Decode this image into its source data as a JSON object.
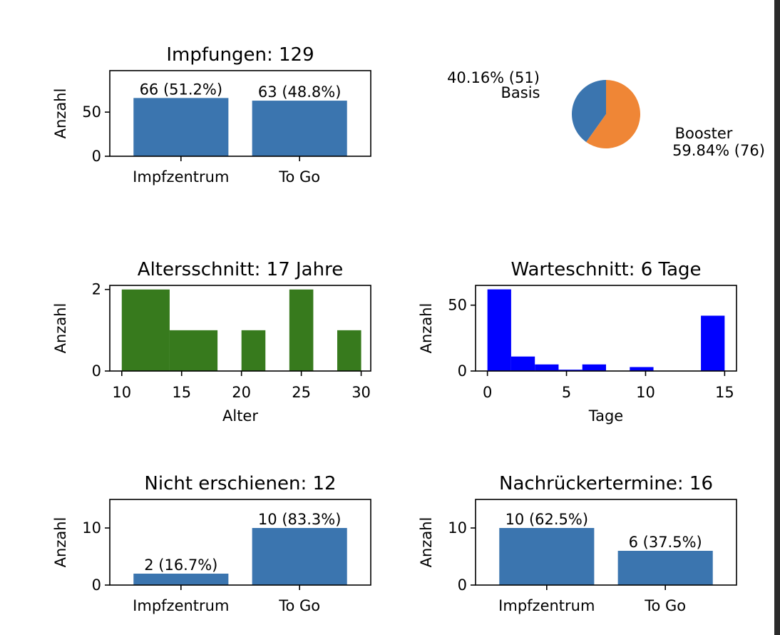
{
  "colors": {
    "bar": "#3b75af",
    "pie_basis": "#3b75af",
    "pie_booster": "#ef8636",
    "hist_age": "#377a1d",
    "hist_wait": "#0000ff"
  },
  "chart_data": [
    {
      "id": "vaccinations",
      "type": "bar",
      "title": "Impfungen: 129",
      "xlabel": "",
      "ylabel": "Anzahl",
      "categories": [
        "Impfzentrum",
        "To Go"
      ],
      "values": [
        66,
        63
      ],
      "data_labels": [
        "66 (51.2%)",
        "63 (48.8%)"
      ],
      "ylim": [
        0,
        97
      ],
      "yticks": [
        0,
        50
      ],
      "color": "bar"
    },
    {
      "id": "dose-type",
      "type": "pie",
      "title": "",
      "slices": [
        {
          "label": "Basis",
          "value": 51,
          "pct_label": "40.16%  (51)",
          "color": "pie_basis"
        },
        {
          "label": "Booster",
          "value": 76,
          "pct_label": "59.84%  (76)",
          "color": "pie_booster"
        }
      ]
    },
    {
      "id": "age",
      "type": "bar",
      "subtype": "histogram",
      "title": "Altersschnitt: 17 Jahre",
      "xlabel": "Alter",
      "ylabel": "Anzahl",
      "bins": [
        {
          "x0": 10,
          "x1": 14,
          "count": 2
        },
        {
          "x0": 14,
          "x1": 18,
          "count": 1
        },
        {
          "x0": 18,
          "x1": 20,
          "count": 0
        },
        {
          "x0": 20,
          "x1": 22,
          "count": 1
        },
        {
          "x0": 22,
          "x1": 24,
          "count": 0
        },
        {
          "x0": 24,
          "x1": 26,
          "count": 2
        },
        {
          "x0": 26,
          "x1": 28,
          "count": 0
        },
        {
          "x0": 28,
          "x1": 30,
          "count": 1
        }
      ],
      "xlim": [
        9.0,
        30.8
      ],
      "xticks": [
        10,
        15,
        20,
        25,
        30
      ],
      "ylim": [
        0,
        2.1
      ],
      "yticks": [
        0,
        2
      ],
      "color": "hist_age"
    },
    {
      "id": "waiting",
      "type": "bar",
      "subtype": "histogram",
      "title": "Warteschnitt: 6 Tage",
      "xlabel": "Tage",
      "ylabel": "Anzahl",
      "bins": [
        {
          "x0": 0.0,
          "x1": 1.5,
          "count": 62
        },
        {
          "x0": 1.5,
          "x1": 3.0,
          "count": 11
        },
        {
          "x0": 3.0,
          "x1": 4.5,
          "count": 5
        },
        {
          "x0": 4.5,
          "x1": 6.0,
          "count": 1
        },
        {
          "x0": 6.0,
          "x1": 7.5,
          "count": 5
        },
        {
          "x0": 7.5,
          "x1": 9.0,
          "count": 0
        },
        {
          "x0": 9.0,
          "x1": 10.5,
          "count": 3
        },
        {
          "x0": 10.5,
          "x1": 12.0,
          "count": 0
        },
        {
          "x0": 12.0,
          "x1": 13.5,
          "count": 0
        },
        {
          "x0": 13.5,
          "x1": 15.0,
          "count": 42
        }
      ],
      "xlim": [
        -0.75,
        15.75
      ],
      "xticks": [
        0,
        5,
        10,
        15
      ],
      "ylim": [
        0,
        65
      ],
      "yticks": [
        0,
        50
      ],
      "color": "hist_wait"
    },
    {
      "id": "no-show",
      "type": "bar",
      "title": "Nicht erschienen: 12",
      "xlabel": "",
      "ylabel": "Anzahl",
      "categories": [
        "Impfzentrum",
        "To Go"
      ],
      "values": [
        2,
        10
      ],
      "data_labels": [
        "2 (16.7%)",
        "10 (83.3%)"
      ],
      "ylim": [
        0,
        15
      ],
      "yticks": [
        0,
        10
      ],
      "color": "bar"
    },
    {
      "id": "standby",
      "type": "bar",
      "title": "Nachrückertermine: 16",
      "xlabel": "",
      "ylabel": "Anzahl",
      "categories": [
        "Impfzentrum",
        "To Go"
      ],
      "values": [
        10,
        6
      ],
      "data_labels": [
        "10 (62.5%)",
        "6 (37.5%)"
      ],
      "ylim": [
        0,
        15
      ],
      "yticks": [
        0,
        10
      ],
      "color": "bar"
    }
  ]
}
